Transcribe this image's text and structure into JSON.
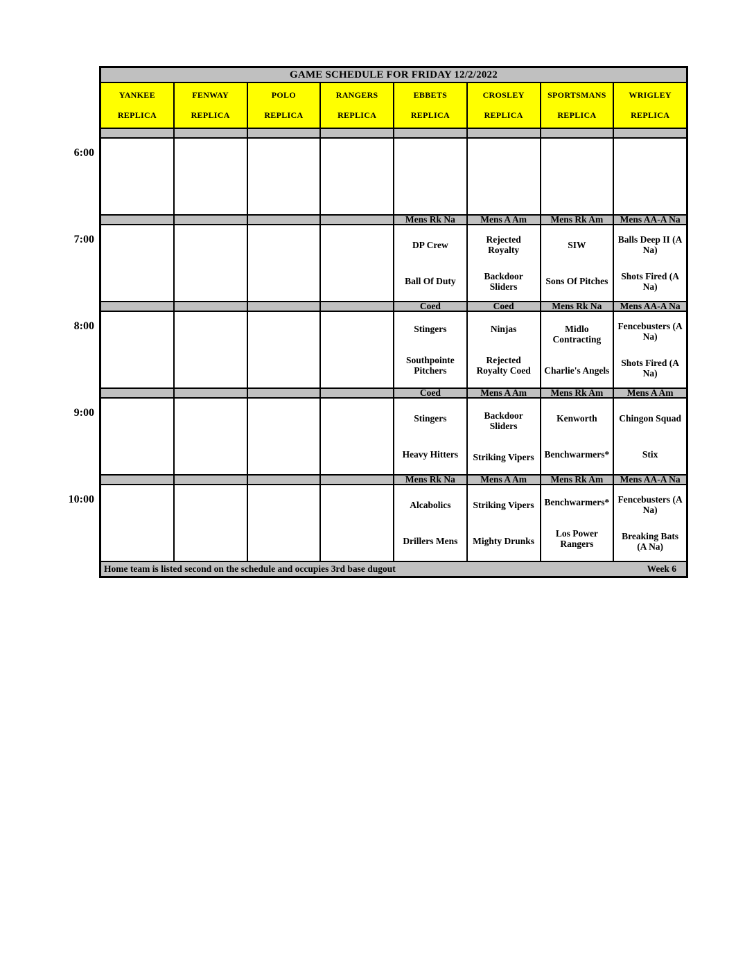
{
  "title": "GAME SCHEDULE FOR FRIDAY 12/2/2022",
  "fields": [
    {
      "name": "YANKEE",
      "sub": "REPLICA"
    },
    {
      "name": "FENWAY",
      "sub": "REPLICA"
    },
    {
      "name": "POLO",
      "sub": "REPLICA"
    },
    {
      "name": "RANGERS",
      "sub": "REPLICA"
    },
    {
      "name": "EBBETS",
      "sub": "REPLICA"
    },
    {
      "name": "CROSLEY",
      "sub": "REPLICA"
    },
    {
      "name": "SPORTSMANS",
      "sub": "REPLICA"
    },
    {
      "name": "WRIGLEY",
      "sub": "REPLICA"
    }
  ],
  "blocks": [
    {
      "time": "6:00"
    },
    {
      "time": "7:00",
      "leagues": {
        "ebbets": "Mens Rk Na",
        "crosley": "Mens A Am",
        "sportsmans": "Mens Rk Am",
        "wrigley": "Mens AA-A Na"
      },
      "games": {
        "ebbets": {
          "away": "DP Crew",
          "home": "Ball Of Duty"
        },
        "crosley": {
          "away": "Rejected Royalty",
          "home": "Backdoor Sliders"
        },
        "sportsmans": {
          "away": "SIW",
          "home": "Sons Of Pitches"
        },
        "wrigley": {
          "away": "Balls Deep II (A Na)",
          "home": "Shots Fired (A Na)"
        }
      }
    },
    {
      "time": "8:00",
      "leagues": {
        "ebbets": "Coed",
        "crosley": "Coed",
        "sportsmans": "Mens Rk Na",
        "wrigley": "Mens AA-A Na"
      },
      "games": {
        "ebbets": {
          "away": "Stingers",
          "home": "Southpointe Pitchers"
        },
        "crosley": {
          "away": "Ninjas",
          "home": "Rejected Royalty Coed"
        },
        "sportsmans": {
          "away": "Midlo Contracting",
          "home": "Charlie's Angels"
        },
        "wrigley": {
          "away": "Fencebusters (A Na)",
          "home": "Shots Fired (A Na)"
        }
      }
    },
    {
      "time": "9:00",
      "leagues": {
        "ebbets": "Coed",
        "crosley": "Mens A Am",
        "sportsmans": "Mens Rk Am",
        "wrigley": "Mens A Am"
      },
      "games": {
        "ebbets": {
          "away": "Stingers",
          "home": "Heavy Hitters"
        },
        "crosley": {
          "away": "Backdoor Sliders",
          "home": "Striking Vipers"
        },
        "sportsmans": {
          "away": "Kenworth",
          "home": "Benchwarmers*"
        },
        "wrigley": {
          "away": "Chingon Squad",
          "home": "Stix"
        }
      }
    },
    {
      "time": "10:00",
      "leagues": {
        "ebbets": "Mens Rk Na",
        "crosley": "Mens A Am",
        "sportsmans": "Mens Rk Am",
        "wrigley": "Mens AA-A Na"
      },
      "games": {
        "ebbets": {
          "away": "Alcabolics",
          "home": "Drillers Mens"
        },
        "crosley": {
          "away": "Striking Vipers",
          "home": "Mighty Drunks"
        },
        "sportsmans": {
          "away": "Benchwarmers*",
          "home": "Los Power Rangers"
        },
        "wrigley": {
          "away": "Fencebusters (A Na)",
          "home": "Breaking Bats (A Na)"
        }
      }
    }
  ],
  "footer": {
    "note": "Home team is listed second on the schedule and occupies 3rd base dugout",
    "week": "Week 6"
  },
  "colors": {
    "title_bar_bg": "#C0C0C0",
    "field_header_bg": "#FFFF00",
    "divider_bg": "#C0C0C0",
    "grid_line": "#000000",
    "cell_bg": "#FFFFFF"
  }
}
